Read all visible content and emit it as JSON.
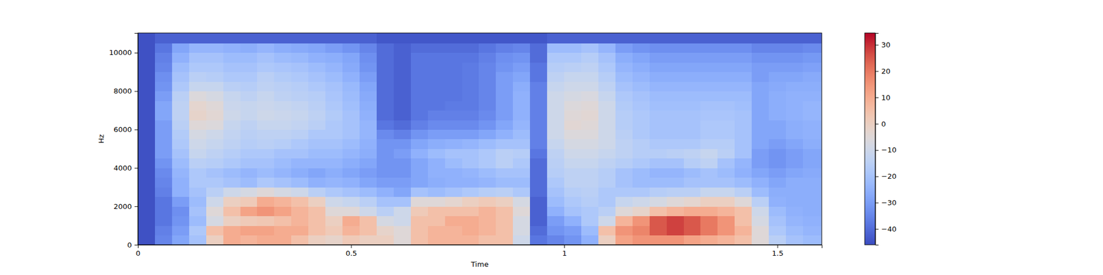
{
  "chart_data": {
    "type": "heatmap",
    "x_label": "Time",
    "y_label": "Hz",
    "x": [
      0,
      0.04,
      0.08,
      0.12,
      0.16,
      0.2,
      0.24,
      0.28,
      0.32,
      0.36,
      0.4,
      0.44,
      0.48,
      0.52,
      0.56,
      0.6,
      0.64,
      0.68,
      0.72,
      0.76,
      0.8,
      0.84,
      0.88,
      0.92,
      0.96,
      1,
      1.04,
      1.08,
      1.12,
      1.16,
      1.2,
      1.24,
      1.28,
      1.32,
      1.36,
      1.4,
      1.44,
      1.48,
      1.52,
      1.56
    ],
    "y": [
      0,
      500,
      1000,
      1500,
      2000,
      2500,
      3000,
      3500,
      4000,
      4500,
      5000,
      5500,
      6000,
      6500,
      7000,
      7500,
      8000,
      8500,
      9000,
      9500,
      10000,
      10500
    ],
    "z": [
      [
        -45,
        -45,
        -45,
        -45,
        -45,
        -45,
        -45,
        -45,
        -45,
        -45,
        -45,
        -45,
        -45,
        -45,
        -45,
        -45,
        -45,
        -45,
        -45,
        -45,
        -45,
        -45
      ],
      [
        -35,
        -36,
        -38,
        -38,
        -38,
        -36,
        -35,
        -34,
        -32,
        -30,
        -30,
        -30,
        -30,
        -28,
        -28,
        -30,
        -32,
        -33,
        -35,
        -36,
        -38,
        -42
      ],
      [
        -28,
        -30,
        -32,
        -33,
        -30,
        -25,
        -25,
        -24,
        -22,
        -20,
        -18,
        -17,
        -15,
        -14,
        -14,
        -15,
        -18,
        -20,
        -22,
        -25,
        -28,
        -42
      ],
      [
        -20,
        -18,
        -22,
        -20,
        -22,
        -20,
        -18,
        -18,
        -15,
        -12,
        -10,
        -8,
        -5,
        -2,
        -3,
        -6,
        -12,
        -15,
        -18,
        -20,
        -24,
        -42
      ],
      [
        0,
        5,
        -8,
        -5,
        -10,
        -15,
        -18,
        -20,
        -16,
        -14,
        -12,
        -10,
        -6,
        -4,
        -5,
        -8,
        -12,
        -16,
        -18,
        -20,
        -24,
        -42
      ],
      [
        10,
        10,
        0,
        5,
        0,
        -10,
        -20,
        -22,
        -18,
        -16,
        -14,
        -13,
        -12,
        -10,
        -11,
        -12,
        -15,
        -18,
        -20,
        -22,
        -25,
        -42
      ],
      [
        8,
        12,
        2,
        12,
        2,
        -8,
        -22,
        -24,
        -20,
        -18,
        -16,
        -15,
        -14,
        -12,
        -12,
        -14,
        -16,
        -18,
        -20,
        -22,
        -26,
        -42
      ],
      [
        10,
        12,
        3,
        15,
        10,
        -5,
        -18,
        -22,
        -20,
        -18,
        -15,
        -14,
        -12,
        -10,
        -11,
        -12,
        -14,
        -15,
        -18,
        -20,
        -24,
        -42
      ],
      [
        10,
        10,
        5,
        12,
        8,
        -8,
        -20,
        -24,
        -22,
        -20,
        -16,
        -14,
        -12,
        -11,
        -12,
        -14,
        -15,
        -17,
        -19,
        -22,
        -26,
        -42
      ],
      [
        5,
        10,
        8,
        8,
        5,
        -10,
        -22,
        -26,
        -24,
        -20,
        -18,
        -15,
        -13,
        -12,
        -13,
        -15,
        -16,
        -18,
        -20,
        -23,
        -27,
        -42
      ],
      [
        0,
        5,
        5,
        5,
        0,
        -15,
        -25,
        -28,
        -24,
        -22,
        -20,
        -18,
        -15,
        -14,
        -15,
        -16,
        -18,
        -20,
        -22,
        -25,
        -28,
        -42
      ],
      [
        -2,
        2,
        0,
        -5,
        -10,
        -18,
        -24,
        -26,
        -24,
        -22,
        -20,
        -18,
        -18,
        -17,
        -18,
        -19,
        -20,
        -22,
        -24,
        -26,
        -30,
        -42
      ],
      [
        2,
        8,
        10,
        -5,
        -12,
        -20,
        -25,
        -28,
        -26,
        -24,
        -22,
        -20,
        -20,
        -20,
        -21,
        -22,
        -23,
        -25,
        -27,
        -28,
        -32,
        -42
      ],
      [
        0,
        5,
        5,
        -10,
        -15,
        -22,
        -28,
        -30,
        -28,
        -26,
        -25,
        -24,
        -24,
        -25,
        -26,
        -27,
        -28,
        -30,
        -32,
        -33,
        -35,
        -42
      ],
      [
        0,
        -2,
        -8,
        -15,
        -20,
        -25,
        -30,
        -32,
        -32,
        -32,
        -32,
        -34,
        -38,
        -40,
        -40,
        -40,
        -40,
        -40,
        -40,
        -40,
        -40,
        -44
      ],
      [
        -5,
        -5,
        -10,
        -10,
        -20,
        -28,
        -30,
        -32,
        -32,
        -30,
        -32,
        -36,
        -40,
        -42,
        -42,
        -42,
        -42,
        -42,
        -42,
        -42,
        -42,
        -44
      ],
      [
        5,
        5,
        5,
        2,
        -5,
        -20,
        -28,
        -28,
        -28,
        -25,
        -28,
        -32,
        -36,
        -38,
        -38,
        -38,
        -38,
        -38,
        -38,
        -38,
        -40,
        -44
      ],
      [
        8,
        8,
        5,
        5,
        -5,
        -22,
        -26,
        -25,
        -25,
        -22,
        -26,
        -30,
        -34,
        -36,
        -38,
        -38,
        -38,
        -38,
        -38,
        -38,
        -40,
        -44
      ],
      [
        8,
        8,
        10,
        5,
        -3,
        -20,
        -25,
        -25,
        -22,
        -20,
        -25,
        -30,
        -34,
        -36,
        -37,
        -38,
        -38,
        -38,
        -38,
        -38,
        -40,
        -44
      ],
      [
        8,
        10,
        10,
        5,
        0,
        -18,
        -25,
        -24,
        -20,
        -20,
        -24,
        -30,
        -34,
        -36,
        -37,
        -37,
        -37,
        -37,
        -37,
        -38,
        -40,
        -44
      ],
      [
        5,
        8,
        8,
        8,
        2,
        -16,
        -24,
        -22,
        -18,
        -18,
        -22,
        -28,
        -32,
        -34,
        -35,
        -35,
        -35,
        -35,
        -35,
        -36,
        -38,
        -44
      ],
      [
        5,
        5,
        5,
        5,
        0,
        -15,
        -22,
        -20,
        -15,
        -15,
        -20,
        -25,
        -28,
        -30,
        -30,
        -30,
        -30,
        -30,
        -32,
        -33,
        -36,
        -44
      ],
      [
        -10,
        -8,
        -8,
        -5,
        -8,
        -18,
        -22,
        -20,
        -18,
        -16,
        -20,
        -22,
        -24,
        -25,
        -25,
        -25,
        -26,
        -28,
        -30,
        -32,
        -35,
        -44
      ],
      [
        -38,
        -40,
        -42,
        -42,
        -42,
        -40,
        -40,
        -40,
        -40,
        -38,
        -36,
        -36,
        -36,
        -36,
        -36,
        -36,
        -36,
        -38,
        -38,
        -40,
        -40,
        -44
      ],
      [
        -35,
        -32,
        -30,
        -25,
        -22,
        -20,
        -18,
        -16,
        -15,
        -14,
        -12,
        -10,
        -10,
        -10,
        -10,
        -10,
        -12,
        -14,
        -16,
        -18,
        -22,
        -42
      ],
      [
        -32,
        -30,
        -25,
        -20,
        -18,
        -16,
        -14,
        -14,
        -12,
        -10,
        -8,
        -6,
        -4,
        -5,
        -6,
        -8,
        -10,
        -12,
        -15,
        -18,
        -22,
        -42
      ],
      [
        -25,
        -22,
        -18,
        -18,
        -16,
        -15,
        -14,
        -14,
        -12,
        -10,
        -8,
        -6,
        -5,
        -4,
        -5,
        -7,
        -10,
        -12,
        -14,
        -16,
        -20,
        -42
      ],
      [
        0,
        5,
        -10,
        -15,
        -18,
        -18,
        -16,
        -16,
        -14,
        -12,
        -10,
        -10,
        -10,
        -10,
        -10,
        -12,
        -14,
        -16,
        -18,
        -20,
        -24,
        -42
      ],
      [
        12,
        15,
        8,
        -5,
        -12,
        -18,
        -20,
        -20,
        -16,
        -14,
        -14,
        -15,
        -16,
        -16,
        -17,
        -18,
        -20,
        -22,
        -24,
        -26,
        -30,
        -42
      ],
      [
        15,
        18,
        15,
        -2,
        -10,
        -18,
        -22,
        -22,
        -18,
        -16,
        -16,
        -18,
        -18,
        -18,
        -19,
        -20,
        -22,
        -24,
        -26,
        -28,
        -32,
        -42
      ],
      [
        15,
        25,
        25,
        5,
        -8,
        -16,
        -22,
        -24,
        -20,
        -16,
        -18,
        -20,
        -20,
        -20,
        -21,
        -22,
        -24,
        -26,
        -28,
        -30,
        -33,
        -42
      ],
      [
        15,
        28,
        28,
        8,
        -5,
        -15,
        -22,
        -24,
        -20,
        -15,
        -18,
        -20,
        -20,
        -20,
        -21,
        -22,
        -24,
        -26,
        -28,
        -30,
        -33,
        -42
      ],
      [
        12,
        25,
        25,
        10,
        -3,
        -15,
        -20,
        -22,
        -16,
        -14,
        -18,
        -20,
        -20,
        -20,
        -21,
        -22,
        -24,
        -26,
        -28,
        -30,
        -33,
        -42
      ],
      [
        10,
        20,
        20,
        10,
        0,
        -12,
        -20,
        -20,
        -14,
        -12,
        -16,
        -18,
        -18,
        -19,
        -20,
        -22,
        -24,
        -26,
        -28,
        -30,
        -33,
        -42
      ],
      [
        8,
        15,
        15,
        8,
        0,
        -12,
        -20,
        -22,
        -20,
        -15,
        -16,
        -18,
        -18,
        -19,
        -20,
        -22,
        -24,
        -26,
        -28,
        -30,
        -33,
        -42
      ],
      [
        5,
        8,
        5,
        5,
        -5,
        -15,
        -22,
        -25,
        -24,
        -20,
        -20,
        -20,
        -20,
        -20,
        -21,
        -22,
        -24,
        -26,
        -28,
        -30,
        -33,
        -42
      ],
      [
        -5,
        -5,
        -8,
        -10,
        -15,
        -22,
        -25,
        -28,
        -30,
        -30,
        -28,
        -28,
        -28,
        -28,
        -28,
        -28,
        -28,
        -30,
        -30,
        -32,
        -35,
        -42
      ],
      [
        -15,
        -18,
        -20,
        -22,
        -25,
        -26,
        -28,
        -30,
        -32,
        -32,
        -30,
        -28,
        -28,
        -26,
        -26,
        -26,
        -27,
        -28,
        -30,
        -32,
        -35,
        -42
      ],
      [
        -20,
        -22,
        -24,
        -25,
        -26,
        -26,
        -26,
        -28,
        -30,
        -30,
        -28,
        -26,
        -26,
        -25,
        -25,
        -25,
        -26,
        -28,
        -30,
        -32,
        -35,
        -42
      ],
      [
        -22,
        -24,
        -25,
        -26,
        -26,
        -26,
        -26,
        -27,
        -28,
        -28,
        -26,
        -25,
        -25,
        -24,
        -24,
        -25,
        -26,
        -27,
        -29,
        -31,
        -34,
        -42
      ]
    ],
    "xlim": [
      0,
      1.604
    ],
    "ylim": [
      0,
      11025
    ],
    "xticks": [
      0,
      0.5,
      1,
      1.5
    ],
    "yticks": [
      0,
      2000,
      4000,
      6000,
      8000,
      10000
    ],
    "colorbar": {
      "range": [
        -46,
        34.5
      ],
      "ticks": [
        {
          "value": -40,
          "label": "−40"
        },
        {
          "value": -30,
          "label": "−30"
        },
        {
          "value": -20,
          "label": "−20"
        },
        {
          "value": -10,
          "label": "−10"
        },
        0,
        10,
        20,
        30
      ]
    }
  }
}
